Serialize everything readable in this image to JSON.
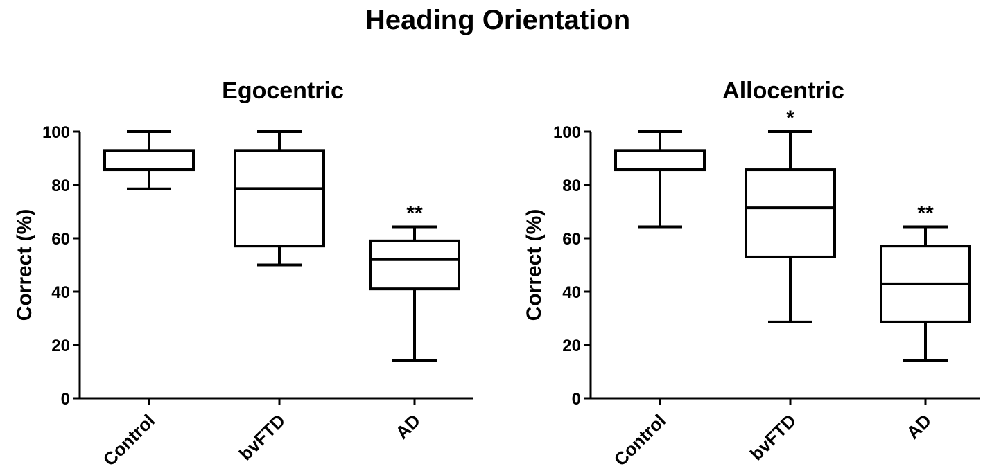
{
  "title": "Heading Orientation",
  "chart_data": [
    {
      "type": "box",
      "title": "Egocentric",
      "xlabel": "",
      "ylabel": "Correct (%)",
      "ylim": [
        0,
        100
      ],
      "yticks": [
        0,
        20,
        40,
        60,
        80,
        100
      ],
      "grid": false,
      "categories": [
        "Control",
        "bvFTD",
        "AD"
      ],
      "boxes": [
        {
          "min": 78.5,
          "q1": 85.7,
          "median": 85.7,
          "q3": 92.9,
          "max": 100,
          "significance": ""
        },
        {
          "min": 50,
          "q1": 57.1,
          "median": 78.6,
          "q3": 92.9,
          "max": 100,
          "significance": ""
        },
        {
          "min": 14.3,
          "q1": 41,
          "median": 52,
          "q3": 59,
          "max": 64.3,
          "significance": "**"
        }
      ]
    },
    {
      "type": "box",
      "title": "Allocentric",
      "xlabel": "",
      "ylabel": "Correct (%)",
      "ylim": [
        0,
        100
      ],
      "yticks": [
        0,
        20,
        40,
        60,
        80,
        100
      ],
      "grid": false,
      "categories": [
        "Control",
        "bvFTD",
        "AD"
      ],
      "boxes": [
        {
          "min": 64.3,
          "q1": 85.7,
          "median": 85.7,
          "q3": 92.9,
          "max": 100,
          "significance": ""
        },
        {
          "min": 28.6,
          "q1": 53,
          "median": 71.4,
          "q3": 85.7,
          "max": 100,
          "significance": "*"
        },
        {
          "min": 14.3,
          "q1": 28.6,
          "median": 42.9,
          "q3": 57.1,
          "max": 64.3,
          "significance": "**"
        }
      ]
    }
  ]
}
